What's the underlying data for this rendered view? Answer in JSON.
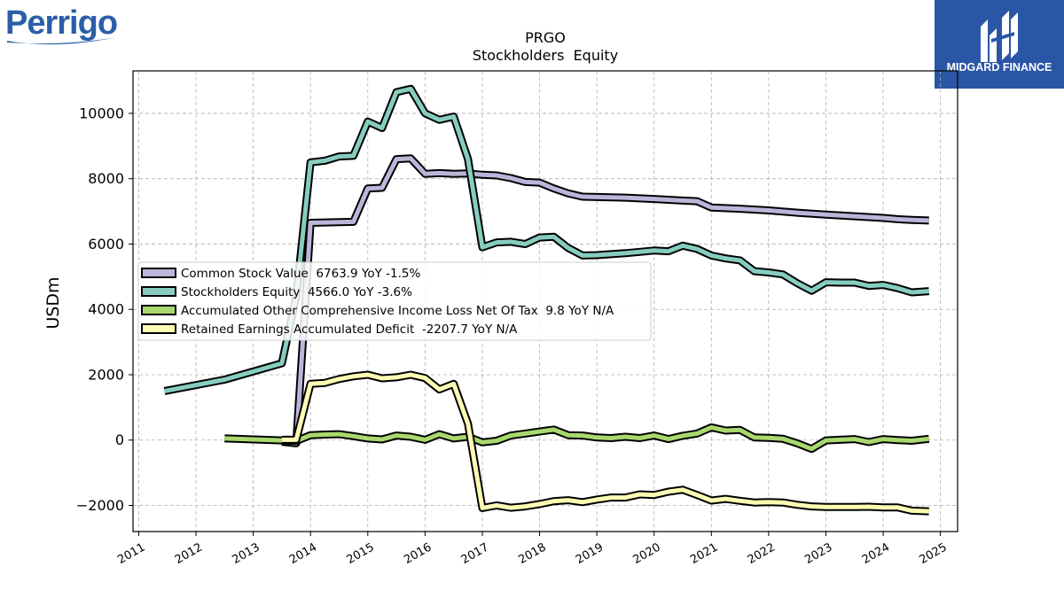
{
  "branding": {
    "left_logo_text": "Perrigo",
    "right_logo_text": "MIDGARD FINANCE",
    "right_logo_bg": "#2a56a6"
  },
  "chart_data": {
    "type": "line",
    "title": "PRGO",
    "subtitle": "Stockholders  Equity",
    "xlabel": "",
    "ylabel": "USDm",
    "xlim": [
      2010.9,
      2025.3
    ],
    "ylim": [
      -2800,
      11300
    ],
    "yticks": [
      -2000,
      0,
      2000,
      4000,
      6000,
      8000,
      10000
    ],
    "ytick_labels": [
      "−2000",
      "0",
      "2000",
      "4000",
      "6000",
      "8000",
      "10000"
    ],
    "xticks": [
      2011,
      2012,
      2013,
      2014,
      2015,
      2016,
      2017,
      2018,
      2019,
      2020,
      2021,
      2022,
      2023,
      2024,
      2025
    ],
    "xtick_labels": [
      "2011",
      "2012",
      "2013",
      "2014",
      "2015",
      "2016",
      "2017",
      "2018",
      "2019",
      "2020",
      "2021",
      "2022",
      "2023",
      "2024",
      "2025"
    ],
    "grid": true,
    "legend_position": "center-left",
    "series": [
      {
        "name": "Common Stock Value  6763.9 YoY -1.5%",
        "color": "#bcb5d9",
        "points": [
          [
            2013.5,
            -50
          ],
          [
            2013.75,
            -100
          ],
          [
            2014.0,
            6650
          ],
          [
            2014.25,
            6660
          ],
          [
            2014.5,
            6670
          ],
          [
            2014.75,
            6680
          ],
          [
            2015.0,
            7700
          ],
          [
            2015.25,
            7720
          ],
          [
            2015.5,
            8600
          ],
          [
            2015.75,
            8620
          ],
          [
            2016.0,
            8150
          ],
          [
            2016.25,
            8170
          ],
          [
            2016.5,
            8150
          ],
          [
            2016.75,
            8160
          ],
          [
            2017.0,
            8120
          ],
          [
            2017.25,
            8100
          ],
          [
            2017.5,
            8020
          ],
          [
            2017.75,
            7900
          ],
          [
            2018.0,
            7880
          ],
          [
            2018.25,
            7700
          ],
          [
            2018.5,
            7550
          ],
          [
            2018.75,
            7450
          ],
          [
            2019.0,
            7440
          ],
          [
            2019.5,
            7420
          ],
          [
            2020.0,
            7380
          ],
          [
            2020.5,
            7330
          ],
          [
            2020.75,
            7310
          ],
          [
            2021.0,
            7120
          ],
          [
            2021.5,
            7080
          ],
          [
            2022.0,
            7030
          ],
          [
            2022.5,
            6960
          ],
          [
            2023.0,
            6900
          ],
          [
            2023.5,
            6850
          ],
          [
            2024.0,
            6800
          ],
          [
            2024.25,
            6760
          ],
          [
            2024.5,
            6740
          ],
          [
            2024.8,
            6720
          ]
        ]
      },
      {
        "name": "Stockholders Equity  4566.0 YoY -3.6%",
        "color": "#86cdbf",
        "points": [
          [
            2011.45,
            1500
          ],
          [
            2012.5,
            1850
          ],
          [
            2013.5,
            2350
          ],
          [
            2013.75,
            4400
          ],
          [
            2014.0,
            8500
          ],
          [
            2014.25,
            8550
          ],
          [
            2014.5,
            8680
          ],
          [
            2014.75,
            8700
          ],
          [
            2015.0,
            9750
          ],
          [
            2015.25,
            9550
          ],
          [
            2015.5,
            10650
          ],
          [
            2015.75,
            10750
          ],
          [
            2016.0,
            10000
          ],
          [
            2016.25,
            9800
          ],
          [
            2016.5,
            9900
          ],
          [
            2016.75,
            8600
          ],
          [
            2017.0,
            5900
          ],
          [
            2017.25,
            6050
          ],
          [
            2017.5,
            6070
          ],
          [
            2017.75,
            6000
          ],
          [
            2018.0,
            6200
          ],
          [
            2018.25,
            6220
          ],
          [
            2018.5,
            5880
          ],
          [
            2018.75,
            5650
          ],
          [
            2019.0,
            5660
          ],
          [
            2019.5,
            5720
          ],
          [
            2020.0,
            5800
          ],
          [
            2020.25,
            5780
          ],
          [
            2020.5,
            5950
          ],
          [
            2020.75,
            5850
          ],
          [
            2021.0,
            5650
          ],
          [
            2021.25,
            5560
          ],
          [
            2021.5,
            5500
          ],
          [
            2021.75,
            5170
          ],
          [
            2022.0,
            5130
          ],
          [
            2022.25,
            5070
          ],
          [
            2022.5,
            4800
          ],
          [
            2022.75,
            4570
          ],
          [
            2023.0,
            4830
          ],
          [
            2023.25,
            4820
          ],
          [
            2023.5,
            4820
          ],
          [
            2023.75,
            4720
          ],
          [
            2024.0,
            4750
          ],
          [
            2024.25,
            4650
          ],
          [
            2024.5,
            4520
          ],
          [
            2024.8,
            4560
          ]
        ]
      },
      {
        "name": "Accumulated Other Comprehensive Income Loss Net Of Tax  9.8 YoY N/A",
        "color": "#a9d86e",
        "points": [
          [
            2012.5,
            50
          ],
          [
            2013.5,
            -10
          ],
          [
            2013.75,
            -30
          ],
          [
            2014.0,
            150
          ],
          [
            2014.25,
            170
          ],
          [
            2014.5,
            180
          ],
          [
            2014.75,
            120
          ],
          [
            2015.0,
            50
          ],
          [
            2015.25,
            20
          ],
          [
            2015.5,
            140
          ],
          [
            2015.75,
            100
          ],
          [
            2016.0,
            10
          ],
          [
            2016.25,
            180
          ],
          [
            2016.5,
            50
          ],
          [
            2016.75,
            100
          ],
          [
            2017.0,
            -70
          ],
          [
            2017.25,
            -20
          ],
          [
            2017.5,
            140
          ],
          [
            2017.75,
            200
          ],
          [
            2018.0,
            260
          ],
          [
            2018.25,
            320
          ],
          [
            2018.5,
            150
          ],
          [
            2018.75,
            140
          ],
          [
            2019.0,
            80
          ],
          [
            2019.25,
            60
          ],
          [
            2019.5,
            100
          ],
          [
            2019.75,
            60
          ],
          [
            2020.0,
            140
          ],
          [
            2020.25,
            30
          ],
          [
            2020.5,
            130
          ],
          [
            2020.75,
            200
          ],
          [
            2021.0,
            390
          ],
          [
            2021.25,
            290
          ],
          [
            2021.5,
            310
          ],
          [
            2021.75,
            80
          ],
          [
            2022.0,
            70
          ],
          [
            2022.25,
            40
          ],
          [
            2022.5,
            -100
          ],
          [
            2022.75,
            -270
          ],
          [
            2023.0,
            -10
          ],
          [
            2023.25,
            10
          ],
          [
            2023.5,
            30
          ],
          [
            2023.75,
            -60
          ],
          [
            2024.0,
            30
          ],
          [
            2024.25,
            0
          ],
          [
            2024.5,
            -20
          ],
          [
            2024.8,
            40
          ]
        ]
      },
      {
        "name": "Retained Earnings Accumulated Deficit  -2207.7 YoY N/A",
        "color": "#fdfbb4",
        "points": [
          [
            2013.5,
            10
          ],
          [
            2013.75,
            10
          ],
          [
            2014.0,
            1720
          ],
          [
            2014.25,
            1750
          ],
          [
            2014.5,
            1870
          ],
          [
            2014.75,
            1950
          ],
          [
            2015.0,
            2000
          ],
          [
            2015.25,
            1890
          ],
          [
            2015.5,
            1920
          ],
          [
            2015.75,
            2000
          ],
          [
            2016.0,
            1900
          ],
          [
            2016.25,
            1550
          ],
          [
            2016.5,
            1720
          ],
          [
            2016.75,
            500
          ],
          [
            2017.0,
            -2080
          ],
          [
            2017.25,
            -2000
          ],
          [
            2017.5,
            -2070
          ],
          [
            2017.75,
            -2030
          ],
          [
            2018.0,
            -1960
          ],
          [
            2018.25,
            -1870
          ],
          [
            2018.5,
            -1840
          ],
          [
            2018.75,
            -1900
          ],
          [
            2019.0,
            -1820
          ],
          [
            2019.25,
            -1760
          ],
          [
            2019.5,
            -1760
          ],
          [
            2019.75,
            -1660
          ],
          [
            2020.0,
            -1680
          ],
          [
            2020.25,
            -1580
          ],
          [
            2020.5,
            -1520
          ],
          [
            2020.75,
            -1680
          ],
          [
            2021.0,
            -1850
          ],
          [
            2021.25,
            -1800
          ],
          [
            2021.5,
            -1860
          ],
          [
            2021.75,
            -1910
          ],
          [
            2022.0,
            -1900
          ],
          [
            2022.25,
            -1910
          ],
          [
            2022.5,
            -1980
          ],
          [
            2022.75,
            -2030
          ],
          [
            2023.0,
            -2050
          ],
          [
            2023.5,
            -2050
          ],
          [
            2023.75,
            -2040
          ],
          [
            2024.0,
            -2060
          ],
          [
            2024.25,
            -2060
          ],
          [
            2024.5,
            -2160
          ],
          [
            2024.8,
            -2180
          ]
        ]
      }
    ]
  }
}
